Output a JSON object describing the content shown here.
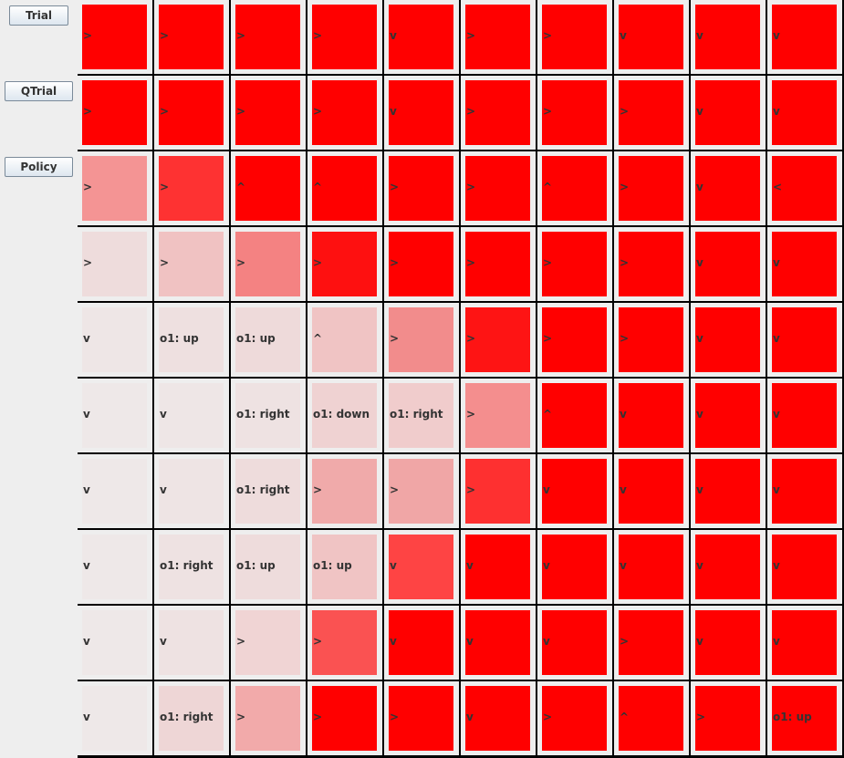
{
  "buttons": {
    "trial": "Trial",
    "qtrial": "QTrial",
    "policy": "Policy"
  },
  "grid": {
    "rows": [
      [
        {
          "label": ">",
          "color": "#ff0000"
        },
        {
          "label": ">",
          "color": "#ff0000"
        },
        {
          "label": ">",
          "color": "#ff0000"
        },
        {
          "label": ">",
          "color": "#ff0000"
        },
        {
          "label": "v",
          "color": "#ff0000"
        },
        {
          "label": ">",
          "color": "#ff0000"
        },
        {
          "label": ">",
          "color": "#ff0000"
        },
        {
          "label": "v",
          "color": "#ff0000"
        },
        {
          "label": "v",
          "color": "#ff0000"
        },
        {
          "label": "v",
          "color": "#ff0000"
        }
      ],
      [
        {
          "label": ">",
          "color": "#ff0000"
        },
        {
          "label": ">",
          "color": "#ff0000"
        },
        {
          "label": ">",
          "color": "#ff0000"
        },
        {
          "label": ">",
          "color": "#ff0000"
        },
        {
          "label": "v",
          "color": "#ff0000"
        },
        {
          "label": ">",
          "color": "#ff0000"
        },
        {
          "label": ">",
          "color": "#ff0000"
        },
        {
          "label": ">",
          "color": "#ff0000"
        },
        {
          "label": "v",
          "color": "#ff0000"
        },
        {
          "label": "v",
          "color": "#ff0000"
        }
      ],
      [
        {
          "label": ">",
          "color": "#f49494"
        },
        {
          "label": ">",
          "color": "#fe3232"
        },
        {
          "label": "^",
          "color": "#ff0000"
        },
        {
          "label": "^",
          "color": "#ff0000"
        },
        {
          "label": ">",
          "color": "#ff0000"
        },
        {
          "label": ">",
          "color": "#ff0000"
        },
        {
          "label": "^",
          "color": "#ff0000"
        },
        {
          "label": ">",
          "color": "#ff0000"
        },
        {
          "label": "v",
          "color": "#ff0000"
        },
        {
          "label": "<",
          "color": "#ff0000"
        }
      ],
      [
        {
          "label": ">",
          "color": "#eedcdc"
        },
        {
          "label": ">",
          "color": "#f0c2c2"
        },
        {
          "label": ">",
          "color": "#f48282"
        },
        {
          "label": ">",
          "color": "#fe1010"
        },
        {
          "label": ">",
          "color": "#ff0000"
        },
        {
          "label": ">",
          "color": "#ff0000"
        },
        {
          "label": ">",
          "color": "#ff0000"
        },
        {
          "label": ">",
          "color": "#ff0000"
        },
        {
          "label": "v",
          "color": "#ff0000"
        },
        {
          "label": "v",
          "color": "#ff0000"
        }
      ],
      [
        {
          "label": "v",
          "color": "#eee6e6"
        },
        {
          "label": "o1: up",
          "color": "#eee0e0"
        },
        {
          "label": "o1: up",
          "color": "#eedada"
        },
        {
          "label": "^",
          "color": "#f0c4c4"
        },
        {
          "label": ">",
          "color": "#f28c8c"
        },
        {
          "label": ">",
          "color": "#fe1414"
        },
        {
          "label": ">",
          "color": "#ff0000"
        },
        {
          "label": ">",
          "color": "#ff0000"
        },
        {
          "label": "v",
          "color": "#ff0000"
        },
        {
          "label": "v",
          "color": "#ff0000"
        }
      ],
      [
        {
          "label": "v",
          "color": "#eee8e8"
        },
        {
          "label": "v",
          "color": "#eee6e6"
        },
        {
          "label": "o1: right",
          "color": "#eee2e2"
        },
        {
          "label": "o1: down",
          "color": "#efd2d2"
        },
        {
          "label": "o1: right",
          "color": "#f0cccc"
        },
        {
          "label": ">",
          "color": "#f48e8e"
        },
        {
          "label": "^",
          "color": "#ff0000"
        },
        {
          "label": "v",
          "color": "#ff0000"
        },
        {
          "label": "v",
          "color": "#ff0000"
        },
        {
          "label": "v",
          "color": "#ff0000"
        }
      ],
      [
        {
          "label": "v",
          "color": "#eee8e8"
        },
        {
          "label": "v",
          "color": "#eee4e4"
        },
        {
          "label": "o1: right",
          "color": "#eedcdc"
        },
        {
          "label": ">",
          "color": "#f0aaaa"
        },
        {
          "label": ">",
          "color": "#f0a6a6"
        },
        {
          "label": ">",
          "color": "#fe3030"
        },
        {
          "label": "v",
          "color": "#ff0000"
        },
        {
          "label": "v",
          "color": "#ff0000"
        },
        {
          "label": "v",
          "color": "#ff0000"
        },
        {
          "label": "v",
          "color": "#ff0000"
        }
      ],
      [
        {
          "label": "v",
          "color": "#eee8e8"
        },
        {
          "label": "o1: right",
          "color": "#eee2e2"
        },
        {
          "label": "o1: up",
          "color": "#eedcdc"
        },
        {
          "label": "o1: up",
          "color": "#f0c4c4"
        },
        {
          "label": "v",
          "color": "#fe4444"
        },
        {
          "label": "v",
          "color": "#ff0000"
        },
        {
          "label": "v",
          "color": "#ff0000"
        },
        {
          "label": "v",
          "color": "#ff0000"
        },
        {
          "label": "v",
          "color": "#ff0000"
        },
        {
          "label": "v",
          "color": "#ff0000"
        }
      ],
      [
        {
          "label": "v",
          "color": "#eee8e8"
        },
        {
          "label": "v",
          "color": "#eee2e2"
        },
        {
          "label": ">",
          "color": "#f0d4d4"
        },
        {
          "label": ">",
          "color": "#fa5252"
        },
        {
          "label": "v",
          "color": "#ff0000"
        },
        {
          "label": "v",
          "color": "#ff0000"
        },
        {
          "label": "v",
          "color": "#ff0000"
        },
        {
          "label": ">",
          "color": "#ff0000"
        },
        {
          "label": "v",
          "color": "#ff0000"
        },
        {
          "label": "v",
          "color": "#ff0000"
        }
      ],
      [
        {
          "label": "v",
          "color": "#eee8e8"
        },
        {
          "label": "o1: right",
          "color": "#eed6d6"
        },
        {
          "label": ">",
          "color": "#f2aaaa"
        },
        {
          "label": ">",
          "color": "#ff0000"
        },
        {
          "label": ">",
          "color": "#ff0000"
        },
        {
          "label": "v",
          "color": "#ff0000"
        },
        {
          "label": ">",
          "color": "#ff0000"
        },
        {
          "label": "^",
          "color": "#ff0000"
        },
        {
          "label": ">",
          "color": "#ff0000"
        },
        {
          "label": "o1: up",
          "color": "#ff0000"
        }
      ]
    ]
  }
}
